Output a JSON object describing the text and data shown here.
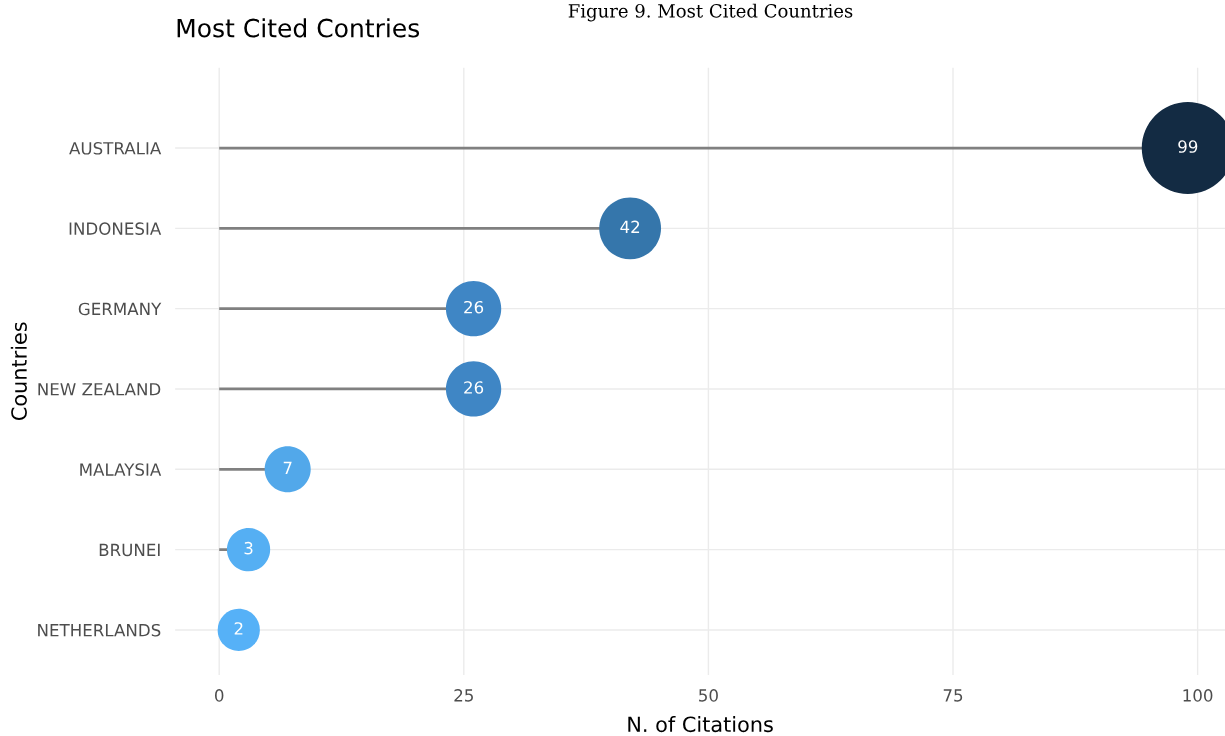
{
  "chart_data": {
    "type": "lollipop",
    "orientation": "horizontal",
    "title": "Most Cited Contries",
    "xlabel": "N. of Citations",
    "ylabel": "Countries",
    "annotations": [
      "Figure 9. Most Cited Countries"
    ],
    "categories": [
      "AUSTRALIA",
      "INDONESIA",
      "GERMANY",
      "NEW ZEALAND",
      "MALAYSIA",
      "BRUNEI",
      "NETHERLANDS"
    ],
    "values": [
      99,
      42,
      26,
      26,
      7,
      3,
      2
    ],
    "sizes": [
      1,
      0.45,
      0.36,
      0.36,
      0.25,
      0.22,
      0.21
    ],
    "colors": [
      "#132b43",
      "#3576ab",
      "#3f86c5",
      "#3f86c5",
      "#52a8ea",
      "#55aff3",
      "#56b1f7"
    ],
    "xlim": [
      -4.5,
      102.8
    ],
    "xticks": [
      0,
      25,
      50,
      75,
      100
    ],
    "grid": true,
    "data_labels": true
  }
}
